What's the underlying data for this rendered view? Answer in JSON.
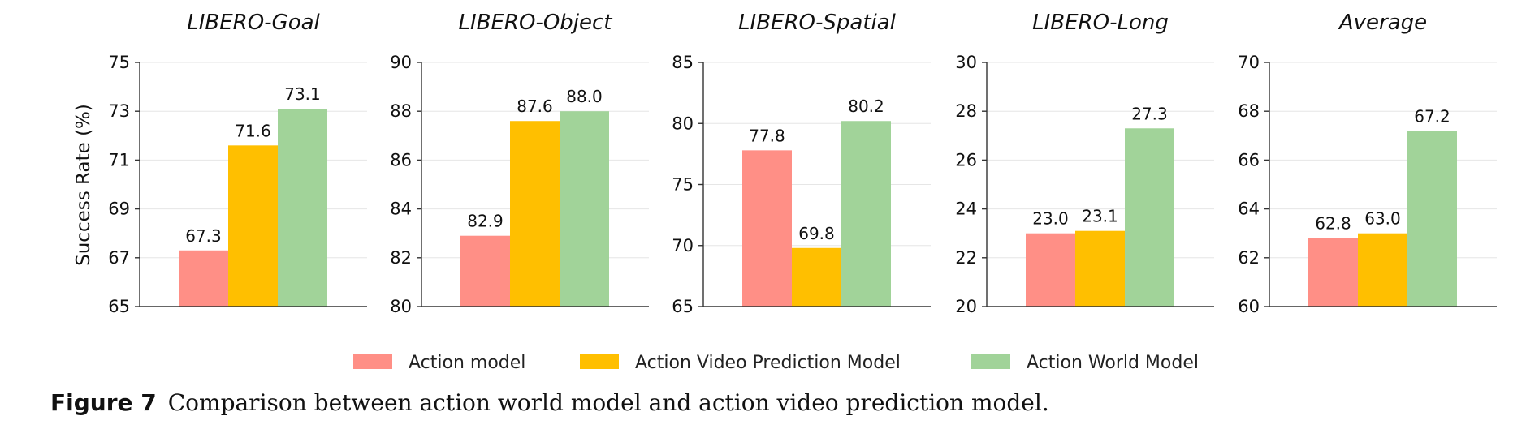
{
  "caption": {
    "label": "Figure 7",
    "text": "Comparison between action world model and action video prediction model."
  },
  "chart_data": {
    "type": "bar",
    "ylabel": "Success Rate (%)",
    "legend_placement": "bottom-center",
    "grid": true,
    "series": [
      {
        "name": "Action model",
        "color": "#ff8f86"
      },
      {
        "name": "Action Video Prediction Model",
        "color": "#ffbf00"
      },
      {
        "name": "Action World Model",
        "color": "#a1d399"
      }
    ],
    "panels": [
      {
        "title": "LIBERO-Goal",
        "ylim": [
          65,
          75
        ],
        "ticks": [
          65,
          67,
          69,
          71,
          73,
          75
        ],
        "values": [
          67.3,
          71.6,
          73.1
        ]
      },
      {
        "title": "LIBERO-Object",
        "ylim": [
          80,
          90
        ],
        "ticks": [
          80,
          82,
          84,
          86,
          88,
          90
        ],
        "values": [
          82.9,
          87.6,
          88.0
        ]
      },
      {
        "title": "LIBERO-Spatial",
        "ylim": [
          65,
          85
        ],
        "ticks": [
          65,
          70,
          75,
          80,
          85
        ],
        "values": [
          77.8,
          69.8,
          80.2
        ]
      },
      {
        "title": "LIBERO-Long",
        "ylim": [
          20,
          30
        ],
        "ticks": [
          20,
          22,
          24,
          26,
          28,
          30
        ],
        "values": [
          23.0,
          23.1,
          27.3
        ]
      },
      {
        "title": "Average",
        "ylim": [
          60,
          70
        ],
        "ticks": [
          60,
          62,
          64,
          66,
          68,
          70
        ],
        "values": [
          62.8,
          63.0,
          67.2
        ]
      }
    ]
  }
}
